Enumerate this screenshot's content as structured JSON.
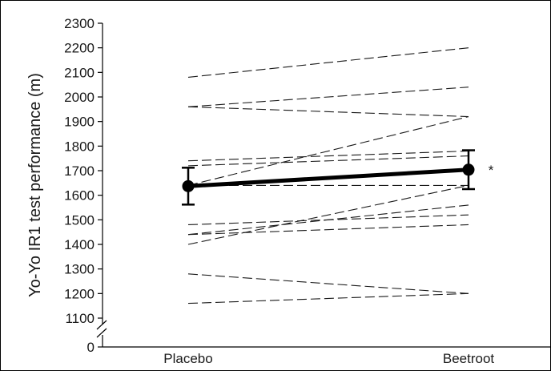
{
  "chart_data": {
    "type": "line",
    "categories": [
      "Placebo",
      "Beetroot"
    ],
    "ylabel": "Yo-Yo IR1 test performance (m)",
    "ylim": [
      1100,
      2300
    ],
    "yticks": [
      2300,
      2200,
      2100,
      2000,
      1900,
      1800,
      1700,
      1600,
      1500,
      1400,
      1300,
      1200,
      1100
    ],
    "axis_break": true,
    "axis_zero_label": "0",
    "individual_series": [
      {
        "values": [
          2080,
          2200
        ]
      },
      {
        "values": [
          1960,
          2040
        ]
      },
      {
        "values": [
          1960,
          1920
        ]
      },
      {
        "values": [
          1640,
          1920
        ]
      },
      {
        "values": [
          1740,
          1780
        ]
      },
      {
        "values": [
          1720,
          1760
        ]
      },
      {
        "values": [
          1640,
          1640
        ]
      },
      {
        "values": [
          1400,
          1640
        ]
      },
      {
        "values": [
          1440,
          1560
        ]
      },
      {
        "values": [
          1480,
          1520
        ]
      },
      {
        "values": [
          1440,
          1480
        ]
      },
      {
        "values": [
          1280,
          1200
        ]
      },
      {
        "values": [
          1160,
          1200
        ]
      }
    ],
    "mean_series": {
      "values": [
        1637,
        1704
      ],
      "error_low": [
        1562,
        1625
      ],
      "error_high": [
        1712,
        1783
      ]
    },
    "annotation": "*"
  }
}
